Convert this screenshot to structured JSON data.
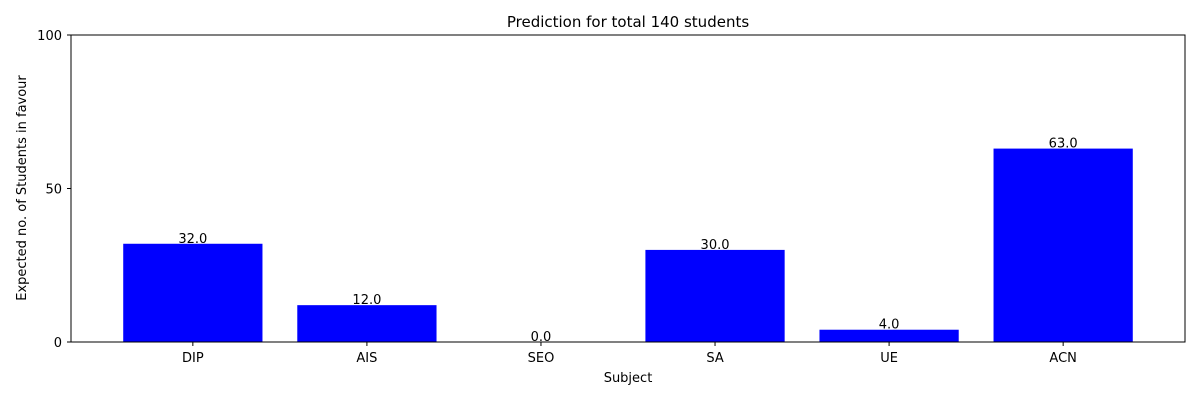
{
  "chart_data": {
    "type": "bar",
    "title": "Prediction for total 140 students",
    "xlabel": "Subject",
    "ylabel": "Expected no. of Students in favour",
    "categories": [
      "DIP",
      "AIS",
      "SEO",
      "SA",
      "UE",
      "ACN"
    ],
    "values": [
      32,
      12,
      0,
      30,
      4,
      63
    ],
    "data_labels": [
      "32.0",
      "12.0",
      "0.0",
      "30.0",
      "4.0",
      "63.0"
    ],
    "ylim": [
      0,
      100
    ],
    "yticks": [
      0,
      50,
      100
    ],
    "grid": false,
    "legend": "none",
    "bar_color": "#0000ff"
  }
}
